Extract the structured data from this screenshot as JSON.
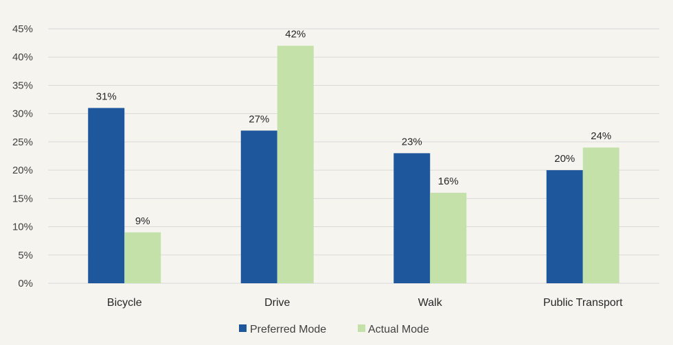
{
  "chart_data": {
    "type": "bar",
    "categories": [
      "Bicycle",
      "Drive",
      "Walk",
      "Public Transport"
    ],
    "series": [
      {
        "name": "Preferred Mode",
        "values": [
          31,
          27,
          23,
          20
        ],
        "color": "#1f579c"
      },
      {
        "name": "Actual Mode",
        "values": [
          9,
          42,
          16,
          24
        ],
        "color": "#c3e1a9"
      }
    ],
    "data_labels": [
      [
        "31%",
        "27%",
        "23%",
        "20%"
      ],
      [
        "9%",
        "42%",
        "16%",
        "24%"
      ]
    ],
    "y_ticks": [
      "0%",
      "5%",
      "10%",
      "15%",
      "20%",
      "25%",
      "30%",
      "35%",
      "40%",
      "45%"
    ],
    "ylim": [
      0,
      45
    ],
    "grid": true,
    "legend": "bottom-center",
    "title": "",
    "xlabel": "",
    "ylabel": "",
    "colors": {
      "background": "#f5f4ef",
      "gridline": "#d9d9d9"
    }
  }
}
